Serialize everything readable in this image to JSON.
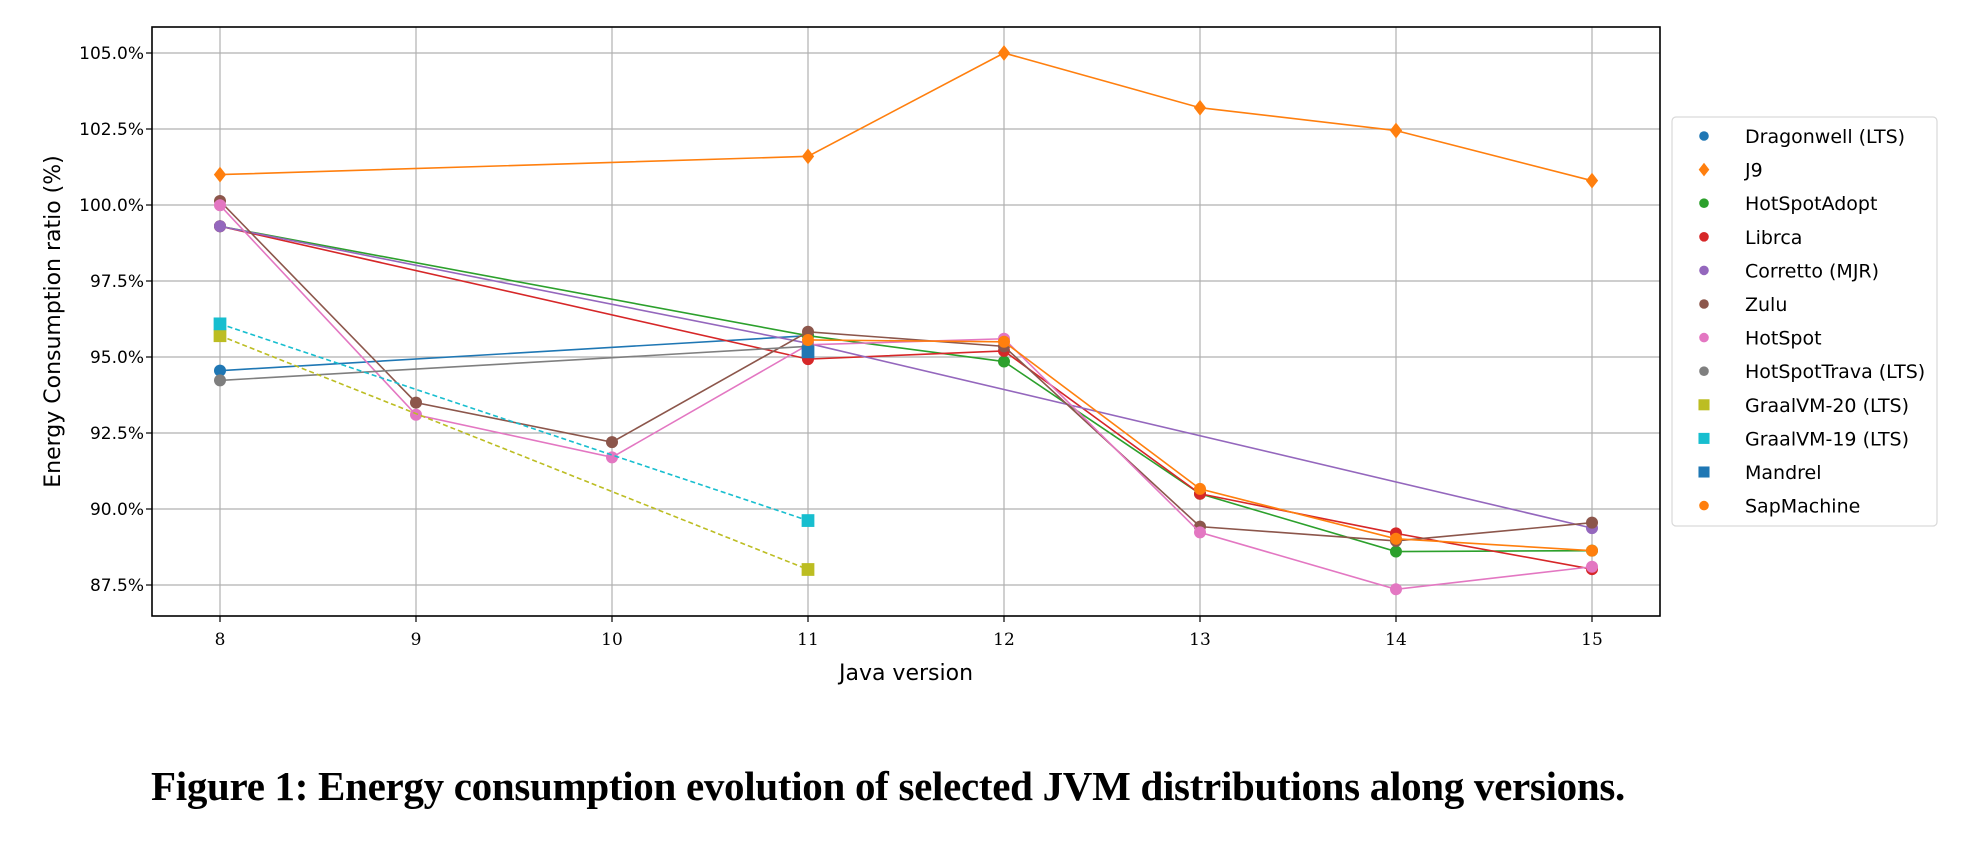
{
  "caption": "Figure 1: Energy consumption evolution of selected JVM distributions along versions.",
  "chart_data": {
    "type": "line",
    "title": "",
    "xlabel": "Java version",
    "ylabel": "Energy Consumption ratio (%)",
    "x_ticks": [
      8,
      9,
      10,
      11,
      12,
      13,
      14,
      15
    ],
    "x_tick_labels": [
      "8",
      "9",
      "10",
      "11",
      "12",
      "13",
      "14",
      "15"
    ],
    "y_ticks": [
      87.5,
      90.0,
      92.5,
      95.0,
      97.5,
      100.0,
      102.5,
      105.0
    ],
    "y_tick_labels": [
      "87.5%",
      "90.0%",
      "92.5%",
      "95.0%",
      "97.5%",
      "100.0%",
      "102.5%",
      "105.0%"
    ],
    "xlim": [
      7.65,
      15.35
    ],
    "ylim": [
      86.5,
      105.85
    ],
    "grid": true,
    "legend_position": "right-outside",
    "series": [
      {
        "name": "Dragonwell (LTS)",
        "color": "#1f77b4",
        "marker": "circle",
        "dashed": false,
        "x": [
          8,
          11
        ],
        "y": [
          94.55,
          95.7
        ]
      },
      {
        "name": "J9",
        "color": "#ff7f0e",
        "marker": "diamond",
        "dashed": false,
        "x": [
          8,
          11,
          12,
          13,
          14,
          15
        ],
        "y": [
          101.0,
          101.6,
          105.0,
          103.2,
          102.45,
          100.8
        ]
      },
      {
        "name": "HotSpotAdopt",
        "color": "#2ca02c",
        "marker": "circle",
        "dashed": false,
        "x": [
          8,
          11,
          12,
          13,
          14,
          15
        ],
        "y": [
          99.3,
          95.7,
          94.85,
          90.5,
          88.6,
          88.63
        ]
      },
      {
        "name": "Librca",
        "color": "#d62728",
        "marker": "circle",
        "dashed": false,
        "x": [
          8,
          11,
          12,
          13,
          14,
          15
        ],
        "y": [
          99.3,
          94.93,
          95.2,
          90.5,
          89.2,
          88.02
        ]
      },
      {
        "name": "Corretto (MJR)",
        "color": "#9467bd",
        "marker": "circle",
        "dashed": false,
        "x": [
          8,
          11,
          15
        ],
        "y": [
          99.3,
          95.45,
          89.37
        ]
      },
      {
        "name": "Zulu",
        "color": "#8c564b",
        "marker": "circle",
        "dashed": false,
        "x": [
          8,
          9,
          10,
          11,
          12,
          13,
          14,
          15
        ],
        "y": [
          100.13,
          93.5,
          92.2,
          95.83,
          95.35,
          89.42,
          88.95,
          89.55
        ]
      },
      {
        "name": "HotSpot",
        "color": "#e377c2",
        "marker": "circle",
        "dashed": false,
        "x": [
          8,
          9,
          10,
          11,
          12,
          13,
          14,
          15
        ],
        "y": [
          99.99,
          93.1,
          91.7,
          95.4,
          95.6,
          89.23,
          87.36,
          88.1
        ]
      },
      {
        "name": "HotSpotTrava (LTS)",
        "color": "#7f7f7f",
        "marker": "circle",
        "dashed": false,
        "x": [
          8,
          11
        ],
        "y": [
          94.23,
          95.35
        ]
      },
      {
        "name": "GraalVM-20 (LTS)",
        "color": "#bcbd22",
        "marker": "square",
        "dashed": true,
        "x": [
          8,
          11
        ],
        "y": [
          95.7,
          88.01
        ]
      },
      {
        "name": "GraalVM-19 (LTS)",
        "color": "#17becf",
        "marker": "square",
        "dashed": true,
        "x": [
          8,
          11
        ],
        "y": [
          96.09,
          89.62
        ]
      },
      {
        "name": "Mandrel",
        "color": "#1f77b4",
        "marker": "square",
        "dashed": false,
        "x": [
          11
        ],
        "y": [
          95.17
        ]
      },
      {
        "name": "SapMachine",
        "color": "#ff7f0e",
        "marker": "circle",
        "dashed": false,
        "x": [
          11,
          12,
          13,
          14,
          15
        ],
        "y": [
          95.56,
          95.5,
          90.66,
          89.02,
          88.63
        ]
      }
    ]
  }
}
